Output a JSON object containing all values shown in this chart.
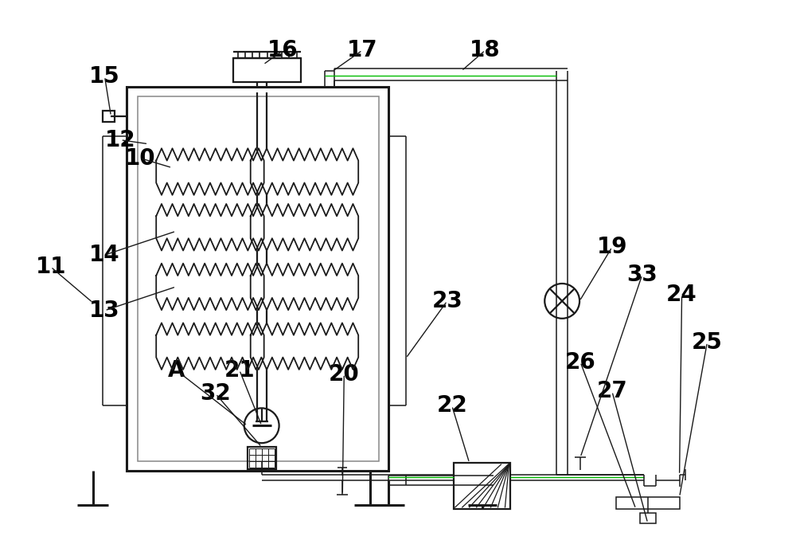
{
  "bg_color": "#ffffff",
  "line_color": "#1a1a1a",
  "gray_color": "#888888",
  "green_color": "#00bb00",
  "pink_color": "#cc44aa",
  "label_color": "#000000",
  "lw_thick": 2.2,
  "lw_mid": 1.6,
  "lw_thin": 1.1,
  "label_fs": 20,
  "figw": 10.0,
  "figh": 6.98
}
